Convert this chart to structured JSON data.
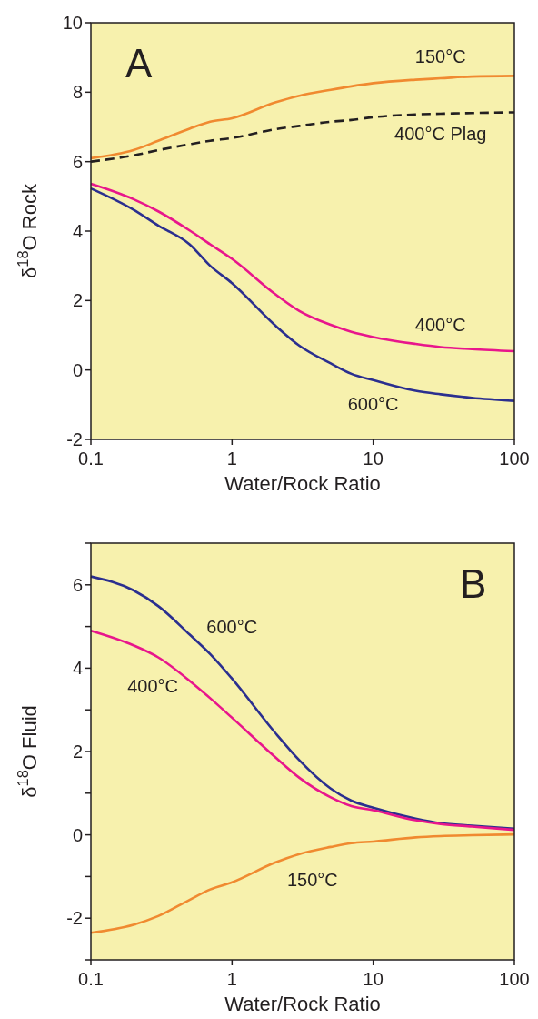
{
  "chart_data": [
    {
      "type": "line",
      "xlabel": "Water/Rock Ratio",
      "ylabel": "δ$^{18}$O Rock",
      "log": "x",
      "xlim": [
        0.1,
        100
      ],
      "xticks": [
        0.1,
        1,
        10,
        100
      ],
      "ylim": [
        -2,
        10
      ],
      "yticks": [
        -2,
        0,
        2,
        4,
        6,
        8,
        10
      ],
      "x": [
        0.1,
        0.2,
        0.3,
        0.5,
        0.7,
        1,
        2,
        3,
        5,
        7,
        10,
        20,
        30,
        50,
        100
      ],
      "series": [
        {
          "name": "150°C",
          "color": "#f08a30",
          "values": [
            6.1,
            6.33,
            6.6,
            6.95,
            7.15,
            7.25,
            7.7,
            7.9,
            8.07,
            8.17,
            8.26,
            8.36,
            8.4,
            8.45,
            8.47
          ]
        },
        {
          "name": "400°C Plag",
          "color": "#231f20",
          "line_style": "dashed",
          "values": [
            6.0,
            6.18,
            6.33,
            6.5,
            6.6,
            6.68,
            6.93,
            7.03,
            7.15,
            7.2,
            7.28,
            7.36,
            7.38,
            7.4,
            7.42
          ]
        },
        {
          "name": "400°C",
          "color": "#e8168c",
          "values": [
            5.36,
            4.92,
            4.57,
            4.02,
            3.62,
            3.2,
            2.2,
            1.7,
            1.3,
            1.1,
            0.95,
            0.75,
            0.66,
            0.6,
            0.54
          ]
        },
        {
          "name": "600°C",
          "color": "#2b2f8f",
          "values": [
            5.23,
            4.62,
            4.16,
            3.62,
            3.0,
            2.5,
            1.3,
            0.7,
            0.19,
            -0.11,
            -0.29,
            -0.6,
            -0.7,
            -0.8,
            -0.89
          ]
        }
      ],
      "annotations": [
        "A"
      ]
    },
    {
      "type": "line",
      "xlabel": "Water/Rock Ratio",
      "ylabel": "δ$^{18}$O Fluid",
      "log": "x",
      "xlim": [
        0.1,
        100
      ],
      "xticks": [
        0.1,
        1,
        10,
        100
      ],
      "ylim": [
        -3,
        7
      ],
      "yticks": [
        {
          "value": -3,
          "label": null
        },
        -2,
        {
          "value": -1,
          "label": null
        },
        0,
        {
          "value": 1,
          "label": null
        },
        2,
        {
          "value": 3,
          "label": null
        },
        4,
        {
          "value": 5,
          "label": null
        },
        6,
        {
          "value": 7,
          "label": null
        }
      ],
      "x": [
        0.1,
        0.2,
        0.3,
        0.5,
        0.7,
        1,
        2,
        3,
        5,
        7,
        10,
        20,
        30,
        50,
        100
      ],
      "series": [
        {
          "name": "600°C",
          "color": "#2b2f8f",
          "values": [
            6.2,
            5.87,
            5.49,
            4.81,
            4.34,
            3.75,
            2.47,
            1.79,
            1.11,
            0.82,
            0.65,
            0.39,
            0.28,
            0.22,
            0.15
          ]
        },
        {
          "name": "400°C",
          "color": "#e8168c",
          "values": [
            4.9,
            4.55,
            4.26,
            3.7,
            3.28,
            2.81,
            1.88,
            1.37,
            0.9,
            0.69,
            0.59,
            0.35,
            0.26,
            0.2,
            0.12
          ]
        },
        {
          "name": "150°C",
          "color": "#f08a30",
          "values": [
            -2.35,
            -2.16,
            -1.95,
            -1.56,
            -1.31,
            -1.14,
            -0.67,
            -0.46,
            -0.29,
            -0.2,
            -0.16,
            -0.06,
            -0.03,
            -0.01,
            0.01
          ]
        }
      ],
      "annotations": [
        "B"
      ]
    }
  ]
}
